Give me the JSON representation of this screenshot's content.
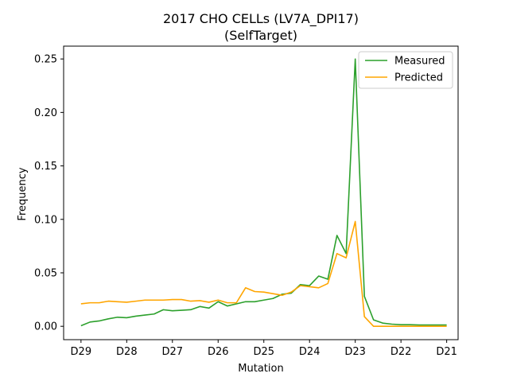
{
  "chart_data": {
    "type": "line",
    "title": "2017 CHO CELLs (LV7A_DPI17)",
    "subtitle": "(SelfTarget)",
    "xlabel": "Mutation",
    "ylabel": "Frequency",
    "x_tick_labels": [
      "D29",
      "D28",
      "D27",
      "D26",
      "D25",
      "D24",
      "D23",
      "D22",
      "D21"
    ],
    "y_ticks": [
      0.0,
      0.05,
      0.1,
      0.15,
      0.2,
      0.25
    ],
    "y_tick_labels": [
      "0.00",
      "0.05",
      "0.10",
      "0.15",
      "0.20",
      "0.25"
    ],
    "xlim": [
      -0.38,
      8.25
    ],
    "ylim": [
      -0.0125,
      0.262
    ],
    "legend_position": "top-right",
    "series": [
      {
        "name": "Measured",
        "color": "#2ca02c",
        "x": [
          0,
          0.2,
          0.4,
          0.6,
          0.8,
          1.0,
          1.2,
          1.4,
          1.6,
          1.8,
          2.0,
          2.2,
          2.4,
          2.6,
          2.8,
          3.0,
          3.2,
          3.4,
          3.6,
          3.8,
          4.0,
          4.2,
          4.4,
          4.6,
          4.8,
          5.0,
          5.2,
          5.4,
          5.6,
          5.8,
          6.0,
          6.2,
          6.4,
          6.6,
          6.8,
          7.0,
          7.2,
          7.4,
          7.6,
          7.8,
          8.0
        ],
        "y": [
          0.0005,
          0.004,
          0.005,
          0.007,
          0.0085,
          0.008,
          0.0095,
          0.0105,
          0.0115,
          0.0155,
          0.0145,
          0.015,
          0.0155,
          0.0185,
          0.017,
          0.023,
          0.019,
          0.021,
          0.023,
          0.023,
          0.0245,
          0.026,
          0.03,
          0.031,
          0.039,
          0.038,
          0.047,
          0.044,
          0.085,
          0.068,
          0.25,
          0.028,
          0.006,
          0.003,
          0.002,
          0.0015,
          0.0015,
          0.0012,
          0.0012,
          0.0012,
          0.0012
        ]
      },
      {
        "name": "Predicted",
        "color": "#ffa500",
        "x": [
          0,
          0.2,
          0.4,
          0.6,
          0.8,
          1.0,
          1.2,
          1.4,
          1.6,
          1.8,
          2.0,
          2.2,
          2.4,
          2.6,
          2.8,
          3.0,
          3.2,
          3.4,
          3.6,
          3.8,
          4.0,
          4.2,
          4.4,
          4.6,
          4.8,
          5.0,
          5.2,
          5.4,
          5.6,
          5.8,
          6.0,
          6.2,
          6.4,
          6.6,
          6.8,
          7.0,
          7.2,
          7.4,
          7.6,
          7.8,
          8.0
        ],
        "y": [
          0.021,
          0.022,
          0.022,
          0.0235,
          0.023,
          0.0225,
          0.0235,
          0.0245,
          0.0245,
          0.0245,
          0.025,
          0.025,
          0.0235,
          0.024,
          0.0225,
          0.0245,
          0.022,
          0.022,
          0.036,
          0.0325,
          0.032,
          0.0305,
          0.029,
          0.032,
          0.038,
          0.037,
          0.036,
          0.04,
          0.068,
          0.064,
          0.098,
          0.009,
          0.0,
          0.0,
          0.0,
          0.0,
          0.0,
          0.0,
          0.0,
          0.0,
          0.0
        ]
      }
    ]
  }
}
